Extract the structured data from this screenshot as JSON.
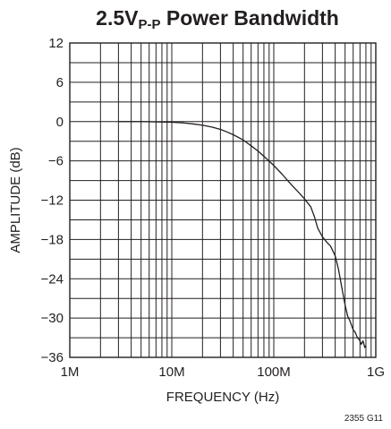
{
  "chart_data": {
    "type": "line",
    "title": {
      "main": "2.5V",
      "subscript": "P-P",
      "rest": " Power Bandwidth"
    },
    "xlabel": "FREQUENCY (Hz)",
    "ylabel": "AMPLITUDE (dB)",
    "x_scale": "log",
    "xlim": [
      1000000,
      1000000000
    ],
    "ylim": [
      -36,
      12
    ],
    "x_ticks": [
      {
        "value": 1000000,
        "label": "1M"
      },
      {
        "value": 10000000,
        "label": "10M"
      },
      {
        "value": 100000000,
        "label": "100M"
      },
      {
        "value": 1000000000,
        "label": "1G"
      }
    ],
    "y_ticks": [
      {
        "value": 12,
        "label": "12"
      },
      {
        "value": 6,
        "label": "6"
      },
      {
        "value": 0,
        "label": "0"
      },
      {
        "value": -6,
        "label": "−6"
      },
      {
        "value": -12,
        "label": "−12"
      },
      {
        "value": -18,
        "label": "−18"
      },
      {
        "value": -24,
        "label": "−24"
      },
      {
        "value": -30,
        "label": "−30"
      },
      {
        "value": -36,
        "label": "−36"
      }
    ],
    "y_minor_step": 3,
    "grid": true,
    "series": [
      {
        "x": [
          3000000,
          5000000,
          7000000,
          10000000,
          13000000,
          16000000,
          20000000,
          25000000,
          30000000,
          35000000,
          40000000,
          50000000,
          60000000,
          70000000,
          80000000,
          100000000,
          120000000,
          150000000,
          180000000,
          200000000,
          230000000,
          250000000,
          270000000,
          300000000,
          330000000,
          360000000,
          400000000,
          430000000,
          460000000,
          500000000,
          530000000,
          560000000,
          600000000,
          630000000,
          660000000,
          690000000,
          720000000,
          750000000,
          780000000,
          800000000
        ],
        "y": [
          0,
          0,
          -0.05,
          -0.1,
          -0.2,
          -0.35,
          -0.55,
          -0.85,
          -1.2,
          -1.6,
          -2.0,
          -2.8,
          -3.7,
          -4.5,
          -5.3,
          -6.7,
          -8.0,
          -9.7,
          -11.0,
          -11.8,
          -13.0,
          -14.5,
          -16.3,
          -17.6,
          -18.4,
          -19.0,
          -20.5,
          -22.5,
          -25.0,
          -28.0,
          -29.7,
          -30.5,
          -31.8,
          -32.2,
          -33.0,
          -33.3,
          -34.0,
          -33.5,
          -34.5,
          -34.2
        ]
      }
    ]
  },
  "figure_id": "2355 G11"
}
